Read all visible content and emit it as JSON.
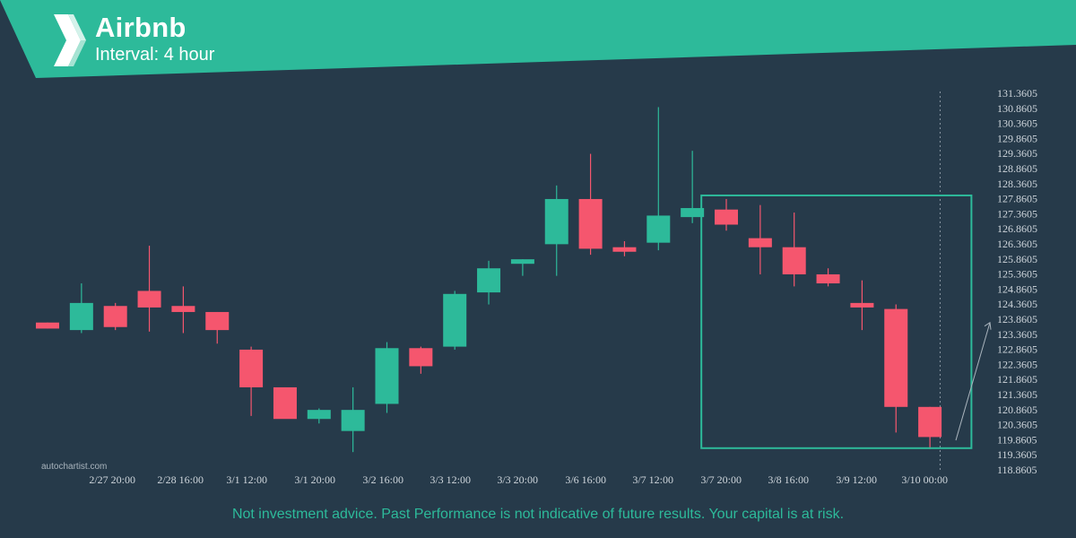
{
  "header": {
    "title": "Airbnb",
    "subtitle": "Interval: 4 hour"
  },
  "colors": {
    "background": "#263a4a",
    "header_band": "#2dba9a",
    "up": "#2dba9a",
    "down": "#f5566e",
    "highlight_box": "#2dba9a",
    "projection_arrow": "#a9b4bd"
  },
  "watermark": "autochartist.com",
  "disclaimer": "Not investment advice. Past Performance is not indicative of future results. Your capital is at risk.",
  "chart_data": {
    "type": "candlestick",
    "y_tick_labels": [
      "131.3605",
      "130.8605",
      "130.3605",
      "129.8605",
      "129.3605",
      "128.8605",
      "128.3605",
      "127.8605",
      "127.3605",
      "126.8605",
      "126.3605",
      "125.8605",
      "125.3605",
      "124.8605",
      "124.3605",
      "123.8605",
      "123.3605",
      "122.8605",
      "122.3605",
      "121.8605",
      "121.3605",
      "120.8605",
      "120.3605",
      "119.8605",
      "119.3605",
      "118.8605"
    ],
    "x_tick_labels": [
      "2/27 20:00",
      "2/28 16:00",
      "3/1 12:00",
      "3/1 20:00",
      "3/2 16:00",
      "3/3 12:00",
      "3/3 20:00",
      "3/6 16:00",
      "3/7 12:00",
      "3/7 20:00",
      "3/8 16:00",
      "3/9 12:00",
      "3/10 00:00"
    ],
    "candles": [
      {
        "o": 23.75,
        "h": 23.75,
        "l": 23.55,
        "c": 23.55
      },
      {
        "o": 23.5,
        "h": 25.05,
        "l": 23.4,
        "c": 24.4
      },
      {
        "o": 24.3,
        "h": 24.4,
        "l": 23.5,
        "c": 23.6
      },
      {
        "o": 24.8,
        "h": 26.3,
        "l": 23.45,
        "c": 24.25
      },
      {
        "o": 24.3,
        "h": 24.95,
        "l": 23.4,
        "c": 24.1
      },
      {
        "o": 24.1,
        "h": 24.1,
        "l": 23.05,
        "c": 23.5
      },
      {
        "o": 22.85,
        "h": 22.95,
        "l": 20.65,
        "c": 21.6
      },
      {
        "o": 21.6,
        "h": 21.6,
        "l": 20.6,
        "c": 20.55
      },
      {
        "o": 20.55,
        "h": 20.9,
        "l": 20.4,
        "c": 20.85
      },
      {
        "o": 20.15,
        "h": 21.6,
        "l": 19.45,
        "c": 20.85
      },
      {
        "o": 21.05,
        "h": 23.1,
        "l": 20.75,
        "c": 22.9
      },
      {
        "o": 22.9,
        "h": 22.95,
        "l": 22.05,
        "c": 22.3
      },
      {
        "o": 22.95,
        "h": 24.8,
        "l": 22.85,
        "c": 24.7
      },
      {
        "o": 24.75,
        "h": 25.8,
        "l": 24.35,
        "c": 25.55
      },
      {
        "o": 25.7,
        "h": 25.85,
        "l": 25.3,
        "c": 25.85
      },
      {
        "o": 26.35,
        "h": 28.3,
        "l": 25.3,
        "c": 27.85
      },
      {
        "o": 27.85,
        "h": 29.35,
        "l": 26.0,
        "c": 26.2
      },
      {
        "o": 26.25,
        "h": 26.45,
        "l": 25.95,
        "c": 26.1
      },
      {
        "o": 26.4,
        "h": 30.9,
        "l": 26.15,
        "c": 27.3
      },
      {
        "o": 27.25,
        "h": 29.45,
        "l": 27.05,
        "c": 27.55
      },
      {
        "o": 27.5,
        "h": 27.85,
        "l": 26.8,
        "c": 27.0
      },
      {
        "o": 26.55,
        "h": 27.65,
        "l": 25.35,
        "c": 26.25
      },
      {
        "o": 26.25,
        "h": 27.4,
        "l": 24.95,
        "c": 25.35
      },
      {
        "o": 25.35,
        "h": 25.55,
        "l": 24.95,
        "c": 25.05
      },
      {
        "o": 24.4,
        "h": 25.15,
        "l": 23.5,
        "c": 24.25
      },
      {
        "o": 24.2,
        "h": 24.35,
        "l": 20.1,
        "c": 20.95
      },
      {
        "o": 20.95,
        "h": 20.95,
        "l": 19.55,
        "c": 19.95
      }
    ],
    "price_offset": 100,
    "highlight_box": {
      "from_index": 19.45,
      "to_index": 26.8,
      "price_top": 127.85,
      "price_bottom": 119.7
    },
    "projection": {
      "from_index": 27.4,
      "from_price": 119.9,
      "to_index": 28.5,
      "to_price": 123.75
    },
    "current_index": 26.3
  }
}
